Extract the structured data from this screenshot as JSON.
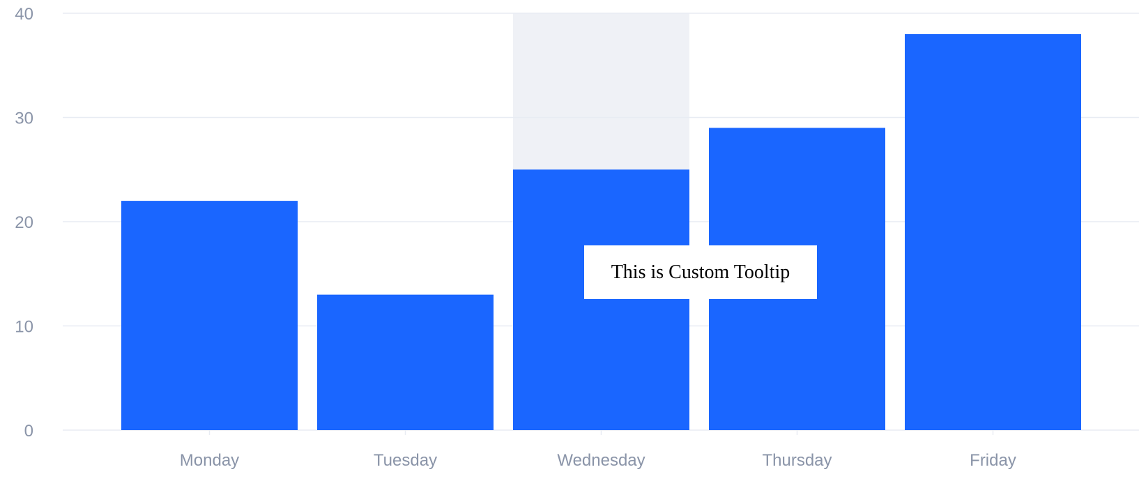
{
  "chart_data": {
    "type": "bar",
    "categories": [
      "Monday",
      "Tuesday",
      "Wednesday",
      "Thursday",
      "Friday"
    ],
    "values": [
      22,
      13,
      25,
      29,
      38
    ],
    "ylim": [
      0,
      40
    ],
    "yticks": [
      0,
      10,
      20,
      30,
      40
    ],
    "grid": true,
    "highlight_category": "Wednesday",
    "colors": {
      "bar": "#1a66ff",
      "highlight": "#eff1f6",
      "grid": "#e8ecf3",
      "axis_text": "#8a94a8",
      "tooltip_bg": "#ffffff",
      "tooltip_text": "#000000"
    }
  },
  "tooltip": {
    "text": "This is Custom Tooltip"
  }
}
